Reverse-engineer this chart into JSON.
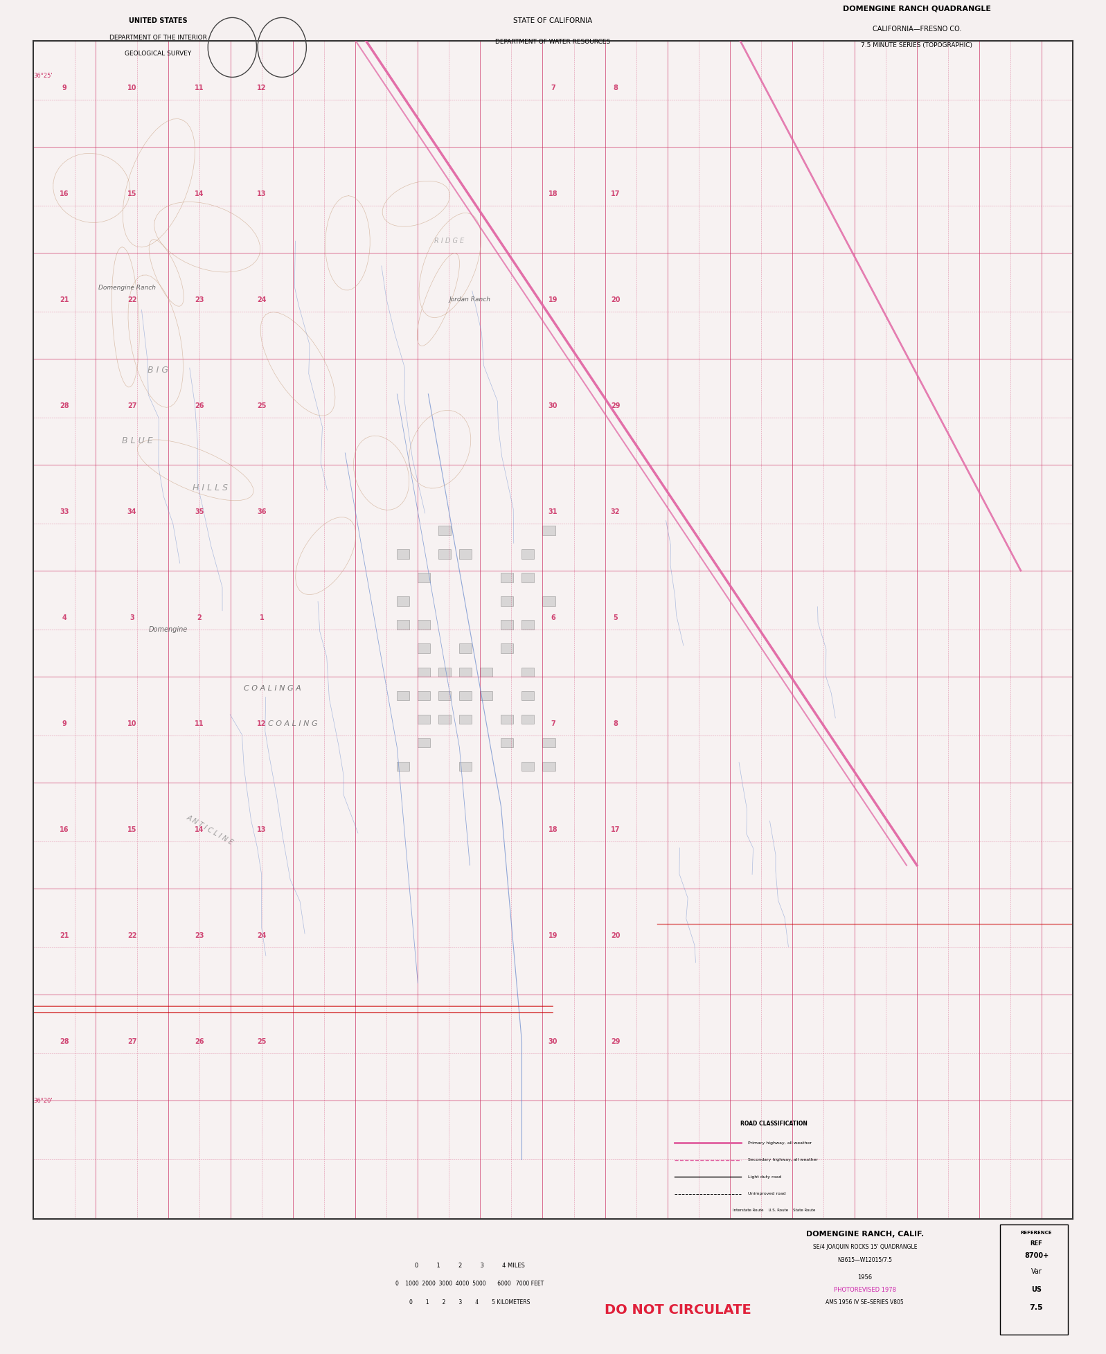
{
  "bg_color": "#f5f0f0",
  "map_bg": "#f7f2f2",
  "border_color": "#333333",
  "title_top_left_1": "UNITED STATES",
  "title_top_left_2": "DEPARTMENT OF THE INTERIOR",
  "title_top_left_3": "GEOLOGICAL SURVEY",
  "title_top_center_1": "STATE OF CALIFORNIA",
  "title_top_center_2": "DEPARTMENT OF WATER RESOURCES",
  "title_top_right_1": "DOMENGINE RANCH QUADRANGLE",
  "title_top_right_2": "CALIFORNIA—FRESNO CO.",
  "title_top_right_3": "7.5 MINUTE SERIES (TOPOGRAPHIC)",
  "pink_road_color": "#e060a0",
  "dark_road_color": "#cc0000",
  "water_color": "#6688cc",
  "contour_color": "#c8a080",
  "grid_color": "#cc3366",
  "black_line_color": "#444444",
  "do_not_circulate_color": "#e0203a",
  "photorevised_color": "#cc22aa",
  "bottom_text_1": "DOMENGINE RANCH, CALIF.",
  "bottom_text_2": "SE/4 JOAQUIN ROCKS 15' QUADRANGLE",
  "bottom_text_3": "N3615—W12015/7.5",
  "bottom_text_4": "1956",
  "bottom_text_5": "PHOTOREVISED 1978",
  "bottom_text_6": "AMS 1956 IV SE–SERIES V805",
  "do_not_circulate": "DO NOT CIRCULATE"
}
